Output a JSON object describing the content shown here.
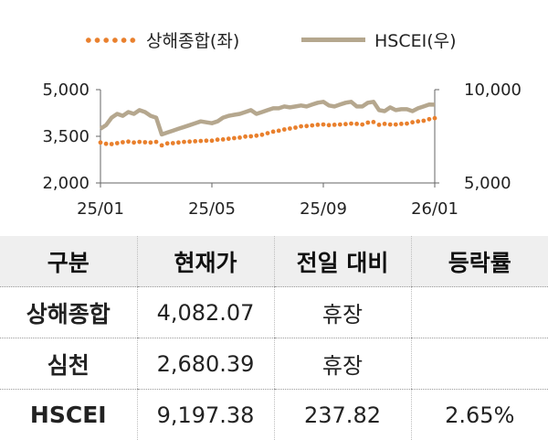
{
  "chart_data": {
    "type": "line",
    "series": [
      {
        "name": "상해종합(좌)",
        "axis": "left",
        "color": "#e9802d",
        "style": "dotted",
        "x": [
          "25/01",
          "",
          "",
          "",
          "",
          "",
          "",
          "",
          "",
          "",
          "",
          "",
          "",
          "",
          "",
          "",
          "",
          "",
          "",
          "",
          "25/05",
          "",
          "",
          "",
          "",
          "",
          "",
          "",
          "",
          "",
          "",
          "",
          "",
          "",
          "",
          "",
          "",
          "",
          "",
          "",
          "25/09",
          "",
          "",
          "",
          "",
          "",
          "",
          "",
          "",
          "",
          "",
          "",
          "",
          "",
          "",
          "",
          "",
          "",
          "",
          "",
          "26/01"
        ],
        "values": [
          3300,
          3260,
          3250,
          3280,
          3310,
          3330,
          3300,
          3320,
          3310,
          3300,
          3320,
          3210,
          3270,
          3280,
          3300,
          3320,
          3330,
          3340,
          3350,
          3360,
          3360,
          3390,
          3400,
          3420,
          3440,
          3460,
          3490,
          3500,
          3520,
          3550,
          3600,
          3650,
          3680,
          3720,
          3750,
          3780,
          3820,
          3830,
          3850,
          3870,
          3880,
          3860,
          3870,
          3880,
          3890,
          3910,
          3900,
          3880,
          3940,
          3960,
          3870,
          3900,
          3880,
          3880,
          3900,
          3910,
          3950,
          3980,
          4000,
          4050,
          4082
        ]
      },
      {
        "name": "HSCEI(우)",
        "axis": "right",
        "color": "#b5a78e",
        "style": "solid",
        "values": [
          7900,
          8100,
          8500,
          8700,
          8600,
          8800,
          8700,
          8900,
          8800,
          8600,
          8500,
          7600,
          7700,
          7800,
          7900,
          8000,
          8100,
          8200,
          8300,
          8250,
          8200,
          8300,
          8500,
          8600,
          8650,
          8700,
          8800,
          8900,
          8700,
          8800,
          8900,
          9000,
          9000,
          9100,
          9050,
          9100,
          9150,
          9100,
          9200,
          9300,
          9350,
          9150,
          9100,
          9200,
          9300,
          9350,
          9100,
          9100,
          9300,
          9350,
          8900,
          8850,
          9050,
          8900,
          8950,
          8950,
          8850,
          9000,
          9100,
          9200,
          9197.38
        ]
      }
    ],
    "x_ticks": [
      "25/01",
      "25/05",
      "25/09",
      "26/01"
    ],
    "y_left": {
      "ticks": [
        "5,000",
        "3,500",
        "2,000"
      ],
      "range": [
        2000,
        5000
      ]
    },
    "y_right": {
      "ticks": [
        "10,000",
        "5,000"
      ],
      "range": [
        5000,
        10000
      ]
    },
    "legend": "top-center"
  },
  "legend": {
    "left_label": "상해종합(좌)",
    "right_label": "HSCEI(우)"
  },
  "table": {
    "headers": [
      "구분",
      "현재가",
      "전일 대비",
      "등락률"
    ],
    "rows": [
      [
        "상해종합",
        "4,082.07",
        "휴장",
        ""
      ],
      [
        "심천",
        "2,680.39",
        "휴장",
        ""
      ],
      [
        "HSCEI",
        "9,197.38",
        "237.82",
        "2.65%"
      ]
    ]
  }
}
